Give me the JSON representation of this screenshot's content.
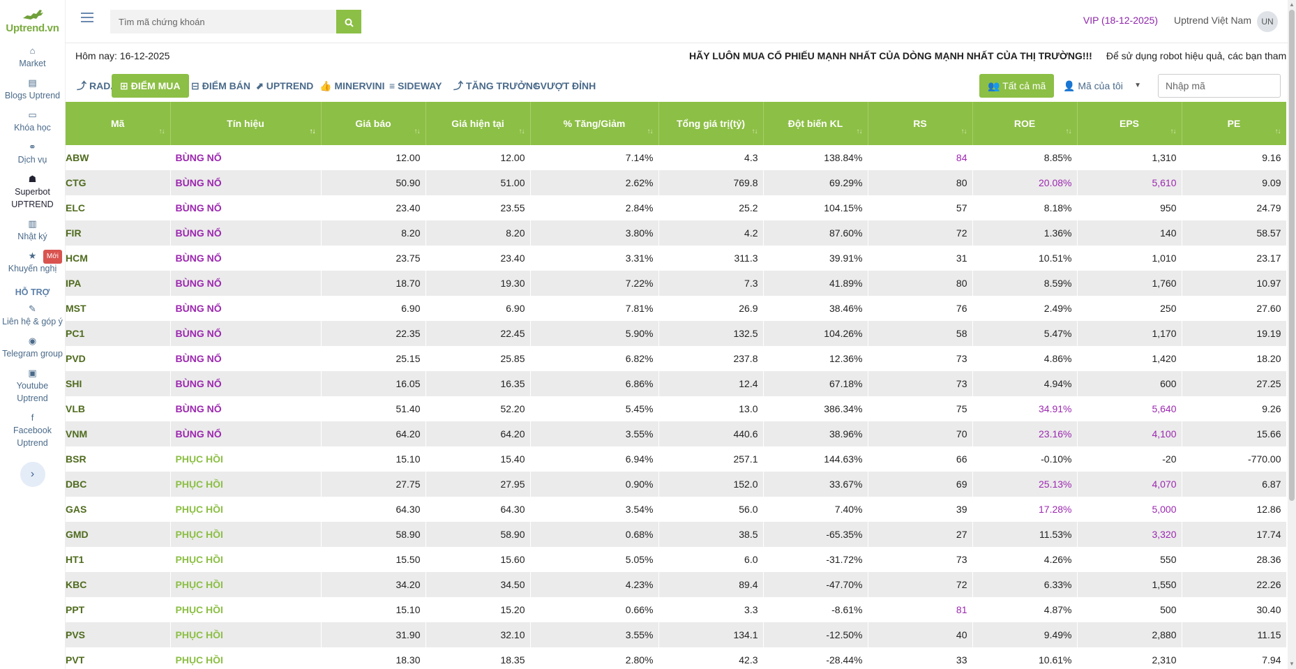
{
  "brand": {
    "name": "Uptrend.vn"
  },
  "sidebar": {
    "items": [
      {
        "label": "Market",
        "icon": "home-icon"
      },
      {
        "label": "Blogs Uptrend",
        "icon": "file-icon"
      },
      {
        "label": "Khóa học",
        "icon": "monitor-icon"
      },
      {
        "label": "Dịch vụ",
        "icon": "handshake-icon"
      },
      {
        "label": "Superbot UPTREND",
        "icon": "robot-icon"
      },
      {
        "label": "Nhật ký",
        "icon": "book-icon"
      },
      {
        "label": "Khuyến nghị",
        "icon": "star-icon",
        "badge": "Mới"
      }
    ],
    "support_heading": "HỖ TRỢ",
    "support_items": [
      {
        "label": "Liên hệ & góp ý",
        "icon": "edit-icon"
      },
      {
        "label": "Telegram group",
        "icon": "telegram-icon"
      },
      {
        "label": "Youtube Uptrend",
        "icon": "youtube-icon"
      },
      {
        "label": "Facebook Uptrend",
        "icon": "facebook-icon"
      }
    ]
  },
  "header": {
    "search_placeholder": "Tìm mã chứng khoán",
    "vip": "VIP (18-12-2025)",
    "user_name": "Uptrend Việt Nam",
    "avatar_initials": "UN"
  },
  "infobar": {
    "today": "Hôm nay: 16-12-2025",
    "marquee_bold": "HÃY LUÔN MUA CỔ PHIẾU MẠNH NHẤT CỦA DÒNG MẠNH NHẤT CỦA THỊ TRƯỜNG!!!",
    "marquee_text": "Để sử dụng robot hiệu quả, các bạn tham c"
  },
  "tabs": [
    {
      "label": "RADAR",
      "icon": "⤴"
    },
    {
      "label": "ĐIỂM MUA",
      "icon": "⊞",
      "active": true
    },
    {
      "label": "ĐIỂM BÁN",
      "icon": "⊟"
    },
    {
      "label": "UPTREND",
      "icon": "⬈"
    },
    {
      "label": "MINERVINI",
      "icon": "👍"
    },
    {
      "label": "SIDEWAY",
      "icon": "≡"
    },
    {
      "label": "TĂNG TRƯỞNG",
      "icon": "⤴"
    },
    {
      "label": "VƯỢT ĐỈNH",
      "icon": "!"
    }
  ],
  "filters": {
    "all_codes": "Tất cả mã",
    "my_codes": "Mã của tôi",
    "code_input_placeholder": "Nhập mã"
  },
  "table": {
    "columns": [
      "Mã",
      "Tín hiệu",
      "Giá báo",
      "Giá hiện tại",
      "% Tăng/Giảm",
      "Tổng giá trị(tỷ)",
      "Đột biến KL",
      "RS",
      "ROE",
      "EPS",
      "PE"
    ],
    "rows": [
      {
        "code": "ABW",
        "signal": "BÙNG NỔ",
        "type": "bn",
        "alert": "12.00",
        "current": "12.00",
        "chg": "7.14%",
        "value": "4.3",
        "vol": "138.84%",
        "rs": "84",
        "roe": "8.85%",
        "eps": "1,310",
        "pe": "9.16",
        "hl": [
          "rs"
        ]
      },
      {
        "code": "CTG",
        "signal": "BÙNG NỔ",
        "type": "bn",
        "alert": "50.90",
        "current": "51.00",
        "chg": "2.62%",
        "value": "769.8",
        "vol": "69.29%",
        "rs": "80",
        "roe": "20.08%",
        "eps": "5,610",
        "pe": "9.09",
        "hl": [
          "roe",
          "eps"
        ]
      },
      {
        "code": "ELC",
        "signal": "BÙNG NỔ",
        "type": "bn",
        "alert": "23.40",
        "current": "23.55",
        "chg": "2.84%",
        "value": "25.2",
        "vol": "104.15%",
        "rs": "57",
        "roe": "8.18%",
        "eps": "950",
        "pe": "24.79",
        "hl": []
      },
      {
        "code": "FIR",
        "signal": "BÙNG NỔ",
        "type": "bn",
        "alert": "8.20",
        "current": "8.20",
        "chg": "3.80%",
        "value": "4.2",
        "vol": "87.60%",
        "rs": "72",
        "roe": "1.36%",
        "eps": "140",
        "pe": "58.57",
        "hl": []
      },
      {
        "code": "HCM",
        "signal": "BÙNG NỔ",
        "type": "bn",
        "alert": "23.75",
        "current": "23.40",
        "chg": "3.31%",
        "value": "311.3",
        "vol": "39.91%",
        "rs": "31",
        "roe": "10.51%",
        "eps": "1,010",
        "pe": "23.17",
        "hl": []
      },
      {
        "code": "IPA",
        "signal": "BÙNG NỔ",
        "type": "bn",
        "alert": "18.70",
        "current": "19.30",
        "chg": "7.22%",
        "value": "7.3",
        "vol": "41.89%",
        "rs": "80",
        "roe": "8.59%",
        "eps": "1,760",
        "pe": "10.97",
        "hl": []
      },
      {
        "code": "MST",
        "signal": "BÙNG NỔ",
        "type": "bn",
        "alert": "6.90",
        "current": "6.90",
        "chg": "7.81%",
        "value": "26.9",
        "vol": "38.46%",
        "rs": "76",
        "roe": "2.49%",
        "eps": "250",
        "pe": "27.60",
        "hl": []
      },
      {
        "code": "PC1",
        "signal": "BÙNG NỔ",
        "type": "bn",
        "alert": "22.35",
        "current": "22.45",
        "chg": "5.90%",
        "value": "132.5",
        "vol": "104.26%",
        "rs": "58",
        "roe": "5.47%",
        "eps": "1,170",
        "pe": "19.19",
        "hl": []
      },
      {
        "code": "PVD",
        "signal": "BÙNG NỔ",
        "type": "bn",
        "alert": "25.15",
        "current": "25.85",
        "chg": "6.82%",
        "value": "237.8",
        "vol": "12.36%",
        "rs": "73",
        "roe": "4.86%",
        "eps": "1,420",
        "pe": "18.20",
        "hl": []
      },
      {
        "code": "SHI",
        "signal": "BÙNG NỔ",
        "type": "bn",
        "alert": "16.05",
        "current": "16.35",
        "chg": "6.86%",
        "value": "12.4",
        "vol": "67.18%",
        "rs": "73",
        "roe": "4.94%",
        "eps": "600",
        "pe": "27.25",
        "hl": []
      },
      {
        "code": "VLB",
        "signal": "BÙNG NỔ",
        "type": "bn",
        "alert": "51.40",
        "current": "52.20",
        "chg": "5.45%",
        "value": "13.0",
        "vol": "386.34%",
        "rs": "75",
        "roe": "34.91%",
        "eps": "5,640",
        "pe": "9.26",
        "hl": [
          "roe",
          "eps"
        ]
      },
      {
        "code": "VNM",
        "signal": "BÙNG NỔ",
        "type": "bn",
        "alert": "64.20",
        "current": "64.20",
        "chg": "3.55%",
        "value": "440.6",
        "vol": "38.96%",
        "rs": "70",
        "roe": "23.16%",
        "eps": "4,100",
        "pe": "15.66",
        "hl": [
          "roe",
          "eps"
        ]
      },
      {
        "code": "BSR",
        "signal": "PHỤC HỒI",
        "type": "ph",
        "alert": "15.10",
        "current": "15.40",
        "chg": "6.94%",
        "value": "257.1",
        "vol": "144.63%",
        "rs": "66",
        "roe": "-0.10%",
        "eps": "-20",
        "pe": "-770.00",
        "hl": []
      },
      {
        "code": "DBC",
        "signal": "PHỤC HỒI",
        "type": "ph",
        "alert": "27.75",
        "current": "27.95",
        "chg": "0.90%",
        "value": "152.0",
        "vol": "33.67%",
        "rs": "69",
        "roe": "25.13%",
        "eps": "4,070",
        "pe": "6.87",
        "hl": [
          "roe",
          "eps"
        ]
      },
      {
        "code": "GAS",
        "signal": "PHỤC HỒI",
        "type": "ph",
        "alert": "64.30",
        "current": "64.30",
        "chg": "3.54%",
        "value": "56.0",
        "vol": "7.40%",
        "rs": "39",
        "roe": "17.28%",
        "eps": "5,000",
        "pe": "12.86",
        "hl": [
          "roe",
          "eps"
        ]
      },
      {
        "code": "GMD",
        "signal": "PHỤC HỒI",
        "type": "ph",
        "alert": "58.90",
        "current": "58.90",
        "chg": "0.68%",
        "value": "38.5",
        "vol": "-65.35%",
        "rs": "27",
        "roe": "11.53%",
        "eps": "3,320",
        "pe": "17.74",
        "hl": [
          "eps"
        ]
      },
      {
        "code": "HT1",
        "signal": "PHỤC HỒI",
        "type": "ph",
        "alert": "15.50",
        "current": "15.60",
        "chg": "5.05%",
        "value": "6.0",
        "vol": "-31.72%",
        "rs": "73",
        "roe": "4.26%",
        "eps": "550",
        "pe": "28.36",
        "hl": []
      },
      {
        "code": "KBC",
        "signal": "PHỤC HỒI",
        "type": "ph",
        "alert": "34.20",
        "current": "34.50",
        "chg": "4.23%",
        "value": "89.4",
        "vol": "-47.70%",
        "rs": "72",
        "roe": "6.33%",
        "eps": "1,550",
        "pe": "22.26",
        "hl": []
      },
      {
        "code": "PPT",
        "signal": "PHỤC HỒI",
        "type": "ph",
        "alert": "15.10",
        "current": "15.20",
        "chg": "0.66%",
        "value": "3.3",
        "vol": "-8.61%",
        "rs": "81",
        "roe": "4.87%",
        "eps": "500",
        "pe": "30.40",
        "hl": [
          "rs"
        ]
      },
      {
        "code": "PVS",
        "signal": "PHỤC HỒI",
        "type": "ph",
        "alert": "31.90",
        "current": "32.10",
        "chg": "3.55%",
        "value": "134.1",
        "vol": "-12.50%",
        "rs": "40",
        "roe": "9.49%",
        "eps": "2,880",
        "pe": "11.15",
        "hl": []
      },
      {
        "code": "PVT",
        "signal": "PHỤC HỒI",
        "type": "ph",
        "alert": "18.30",
        "current": "18.35",
        "chg": "2.80%",
        "value": "42.3",
        "vol": "-28.44%",
        "rs": "33",
        "roe": "10.61%",
        "eps": "2,310",
        "pe": "7.94",
        "hl": []
      }
    ]
  },
  "colors": {
    "accent": "#8cbf45",
    "highlight": "#9c27b0",
    "code_text": "#4f6b1e"
  }
}
